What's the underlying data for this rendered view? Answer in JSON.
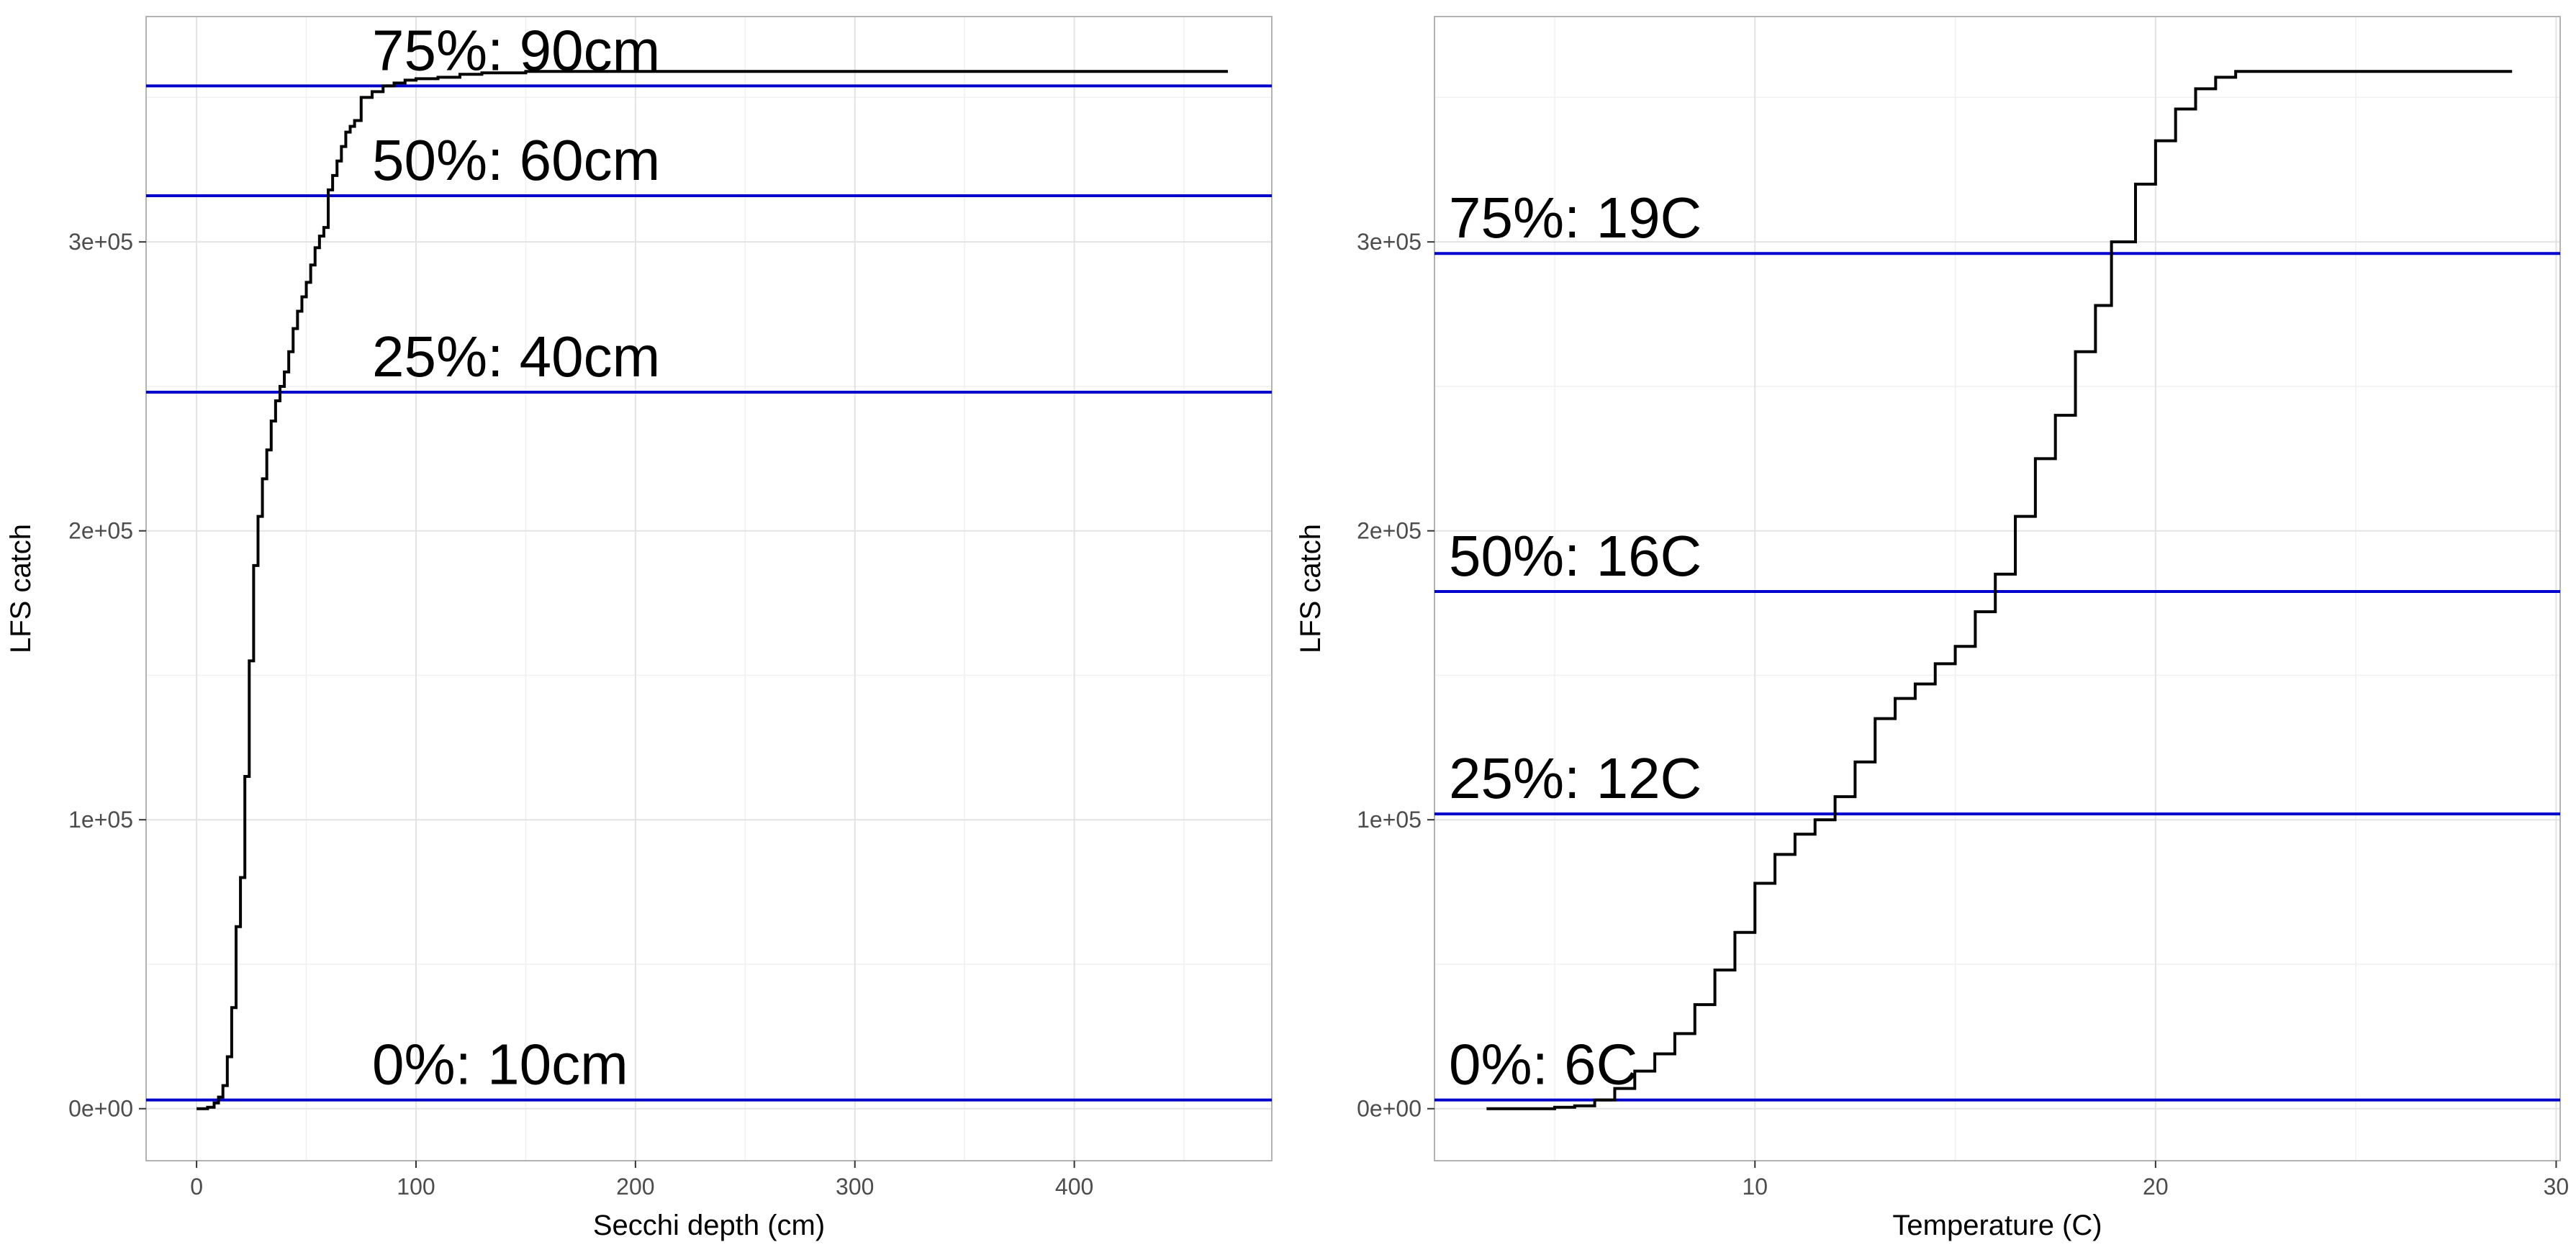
{
  "chart_data": [
    {
      "type": "line",
      "title": "",
      "xlabel": "Secchi depth (cm)",
      "ylabel": "LFS catch",
      "xlim": [
        -23,
        490
      ],
      "ylim": [
        -18000,
        378000
      ],
      "x_ticks": [
        0,
        100,
        200,
        300,
        400
      ],
      "x_tick_labels": [
        "0",
        "100",
        "200",
        "300",
        "400"
      ],
      "y_ticks": [
        0,
        100000,
        200000,
        300000
      ],
      "y_tick_labels": [
        "0e+00",
        "1e+05",
        "2e+05",
        "3e+05"
      ],
      "grid": true,
      "series": [
        {
          "color": "#000000",
          "x": [
            0,
            5,
            8,
            10,
            12,
            14,
            16,
            18,
            20,
            22,
            24,
            26,
            28,
            30,
            32,
            34,
            36,
            38,
            40,
            42,
            44,
            46,
            48,
            50,
            52,
            54,
            56,
            58,
            60,
            62,
            64,
            66,
            68,
            70,
            72,
            75,
            80,
            85,
            90,
            95,
            100,
            110,
            120,
            130,
            150,
            200,
            300,
            470
          ],
          "y": [
            0,
            500,
            2000,
            4000,
            8000,
            18000,
            35000,
            63000,
            80000,
            115000,
            155000,
            188000,
            205000,
            218000,
            228000,
            238000,
            245000,
            250000,
            255000,
            262000,
            270000,
            276000,
            281000,
            286000,
            292000,
            298000,
            302000,
            305000,
            318000,
            323000,
            328000,
            333000,
            338000,
            340000,
            342000,
            350000,
            352000,
            354000,
            355000,
            356000,
            356500,
            357000,
            358000,
            358500,
            359000,
            359000,
            359000,
            359000
          ]
        }
      ],
      "hlines": [
        {
          "y": 3000,
          "color": "#0000cc",
          "label": "0%: 10cm"
        },
        {
          "y": 248000,
          "color": "#0000cc",
          "label": "25%: 40cm"
        },
        {
          "y": 316000,
          "color": "#0000cc",
          "label": "50%: 60cm"
        },
        {
          "y": 354000,
          "color": "#0000cc",
          "label": "75%: 90cm"
        }
      ]
    },
    {
      "type": "line",
      "title": "",
      "xlabel": "Temperature (C)",
      "ylabel": "LFS catch",
      "xlim": [
        2,
        30.1
      ],
      "ylim": [
        -18000,
        378000
      ],
      "x_ticks": [
        10,
        20,
        30
      ],
      "x_tick_labels": [
        "10",
        "20",
        "30"
      ],
      "y_ticks": [
        0,
        100000,
        200000,
        300000
      ],
      "y_tick_labels": [
        "0e+00",
        "1e+05",
        "2e+05",
        "3e+05"
      ],
      "grid": true,
      "series": [
        {
          "color": "#000000",
          "x": [
            3.3,
            4.0,
            5.0,
            5.5,
            6.0,
            6.5,
            7.0,
            7.5,
            8.0,
            8.5,
            9.0,
            9.5,
            10.0,
            10.5,
            11.0,
            11.5,
            12.0,
            12.5,
            13.0,
            13.5,
            14.0,
            14.5,
            15.0,
            15.5,
            16.0,
            16.5,
            17.0,
            17.5,
            18.0,
            18.5,
            18.9,
            19.5,
            20.0,
            20.5,
            21.0,
            21.5,
            22.0,
            22.5,
            24.0,
            26.0,
            28.9
          ],
          "y": [
            0,
            0,
            500,
            1000,
            3000,
            7000,
            13000,
            19000,
            26000,
            36000,
            48000,
            61000,
            78000,
            88000,
            95000,
            100000,
            108000,
            120000,
            135000,
            142000,
            147000,
            154000,
            160000,
            172000,
            185000,
            205000,
            225000,
            240000,
            262000,
            278000,
            300000,
            320000,
            335000,
            346000,
            353000,
            357000,
            359000,
            359000,
            359000,
            359000,
            359000
          ]
        }
      ],
      "hlines": [
        {
          "y": 3000,
          "color": "#0000cc",
          "label": "0%: 6C"
        },
        {
          "y": 102000,
          "color": "#0000cc",
          "label": "25%: 12C"
        },
        {
          "y": 179000,
          "color": "#0000cc",
          "label": "50%: 16C"
        },
        {
          "y": 296000,
          "color": "#0000cc",
          "label": "75%: 19C"
        }
      ]
    }
  ]
}
